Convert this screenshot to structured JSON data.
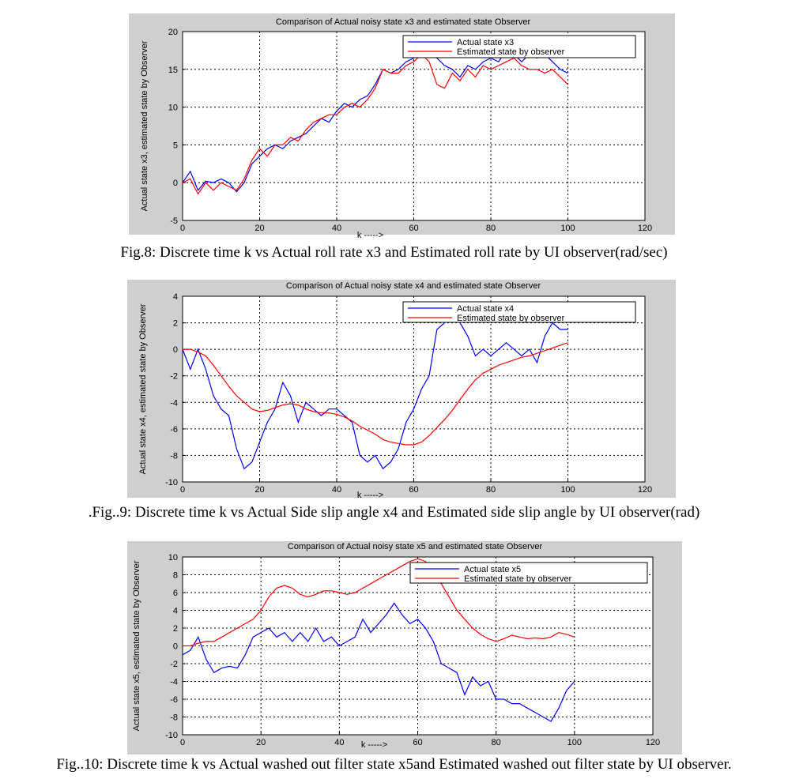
{
  "chart_data": [
    {
      "type": "line",
      "title": "Comparison of Actual noisy state x3 and estimated state  Observer",
      "xlabel": "k ----->",
      "ylabel": "Actual state x3, estimated state by Observer",
      "xlim": [
        0,
        120
      ],
      "ylim": [
        -5,
        20
      ],
      "xticks": [
        0,
        20,
        40,
        60,
        80,
        100,
        120
      ],
      "yticks": [
        -5,
        0,
        5,
        10,
        15,
        20
      ],
      "grid": true,
      "legend_position": "top-right",
      "caption": "Fig.8: Discrete time k vs Actual  roll  rate x3 and Estimated roll rate by UI observer(rad/sec)",
      "series": [
        {
          "name": "Actual state x3",
          "color": "#0000ff",
          "x": [
            0,
            2,
            4,
            6,
            8,
            10,
            12,
            14,
            16,
            18,
            20,
            22,
            24,
            26,
            28,
            30,
            32,
            34,
            36,
            38,
            40,
            42,
            44,
            46,
            48,
            50,
            52,
            54,
            56,
            58,
            60,
            62,
            64,
            66,
            68,
            70,
            72,
            74,
            76,
            78,
            80,
            82,
            84,
            86,
            88,
            90,
            92,
            94,
            96,
            98,
            100
          ],
          "y": [
            0,
            1.5,
            -1,
            0.2,
            0,
            0.5,
            0,
            -1.2,
            0,
            2.5,
            3.5,
            4.5,
            5,
            4.5,
            5.5,
            6,
            6.5,
            7.5,
            8.5,
            8,
            9.5,
            10.5,
            10,
            11,
            11.5,
            13,
            15,
            14.5,
            15,
            16,
            16.5,
            17.5,
            17,
            16.5,
            15.5,
            15,
            14,
            15.5,
            15,
            16,
            16.5,
            16,
            17.5,
            17,
            16,
            17,
            16.5,
            17,
            16,
            15,
            14.5
          ]
        },
        {
          "name": "Estimated state by observer",
          "color": "#ff0000",
          "x": [
            0,
            2,
            4,
            6,
            8,
            10,
            12,
            14,
            16,
            18,
            20,
            22,
            24,
            26,
            28,
            30,
            32,
            34,
            36,
            38,
            40,
            42,
            44,
            46,
            48,
            50,
            52,
            54,
            56,
            58,
            60,
            62,
            64,
            66,
            68,
            70,
            72,
            74,
            76,
            78,
            80,
            82,
            84,
            86,
            88,
            90,
            92,
            94,
            96,
            98,
            100
          ],
          "y": [
            0,
            0.5,
            -1.5,
            0,
            -1,
            0,
            -0.5,
            -1,
            0.5,
            3,
            4.5,
            3.5,
            5,
            5,
            6,
            5.5,
            7,
            8,
            8.5,
            9,
            9,
            10,
            10.5,
            10,
            11,
            12.5,
            15,
            14.5,
            14.5,
            15.5,
            16,
            17,
            16,
            13,
            12.5,
            14.5,
            13.5,
            15,
            14,
            15.5,
            15,
            15.5,
            16,
            16.5,
            15.5,
            15,
            15,
            14.5,
            15,
            14,
            13
          ]
        }
      ]
    },
    {
      "type": "line",
      "title": "Comparison of Actual noisy state x4 and estimated state  Observer",
      "xlabel": "k ----->",
      "ylabel": "Actual state x4, estimated state by Observer",
      "xlim": [
        0,
        120
      ],
      "ylim": [
        -10,
        4
      ],
      "xticks": [
        0,
        20,
        40,
        60,
        80,
        100,
        120
      ],
      "yticks": [
        -10,
        -8,
        -6,
        -4,
        -2,
        0,
        2,
        4
      ],
      "grid": true,
      "legend_position": "top-right",
      "caption": ".Fig..9: Discrete time k vs Actual Side slip angle x4 and Estimated side slip angle  by UI observer(rad)",
      "series": [
        {
          "name": "Actual state x4",
          "color": "#0000ff",
          "x": [
            0,
            2,
            4,
            6,
            8,
            10,
            12,
            14,
            16,
            18,
            20,
            22,
            24,
            26,
            28,
            30,
            32,
            34,
            36,
            38,
            40,
            42,
            44,
            46,
            48,
            50,
            52,
            54,
            56,
            58,
            60,
            62,
            64,
            66,
            68,
            70,
            72,
            74,
            76,
            78,
            80,
            82,
            84,
            86,
            88,
            90,
            92,
            94,
            96,
            98,
            100
          ],
          "y": [
            0,
            -1.5,
            0,
            -1.5,
            -3.5,
            -4.5,
            -5,
            -7.5,
            -9,
            -8.5,
            -7,
            -5.5,
            -4.5,
            -2.5,
            -3.5,
            -5.5,
            -4,
            -4.5,
            -5,
            -4.5,
            -4.5,
            -5,
            -5.5,
            -8,
            -8.5,
            -8,
            -9,
            -8.5,
            -7.5,
            -5.5,
            -4.5,
            -3,
            -2,
            1.5,
            2,
            3,
            2,
            1,
            -0.5,
            0,
            -0.5,
            0,
            0.5,
            0,
            -0.5,
            0,
            -1,
            1,
            2,
            1.5,
            1.5
          ]
        },
        {
          "name": "Estimated state by observer",
          "color": "#ff0000",
          "x": [
            0,
            2,
            4,
            6,
            8,
            10,
            12,
            14,
            16,
            18,
            20,
            22,
            24,
            26,
            28,
            30,
            32,
            34,
            36,
            38,
            40,
            42,
            44,
            46,
            48,
            50,
            52,
            54,
            56,
            58,
            60,
            62,
            64,
            66,
            68,
            70,
            72,
            74,
            76,
            78,
            80,
            82,
            84,
            86,
            88,
            90,
            92,
            94,
            96,
            98,
            100
          ],
          "y": [
            0,
            0,
            -0.2,
            -0.5,
            -1.2,
            -2,
            -2.8,
            -3.5,
            -4,
            -4.5,
            -4.7,
            -4.6,
            -4.4,
            -4.2,
            -4.1,
            -4.2,
            -4.5,
            -4.7,
            -4.8,
            -4.8,
            -4.9,
            -5.1,
            -5.4,
            -5.8,
            -6.1,
            -6.4,
            -6.8,
            -7.0,
            -7.1,
            -7.2,
            -7.2,
            -7.0,
            -6.5,
            -5.9,
            -5.3,
            -4.6,
            -3.8,
            -3.0,
            -2.3,
            -1.8,
            -1.5,
            -1.2,
            -1.0,
            -0.8,
            -0.6,
            -0.5,
            -0.3,
            -0.1,
            0.1,
            0.3,
            0.5
          ]
        }
      ]
    },
    {
      "type": "line",
      "title": "Comparison of Actual noisy state x5 and estimated state  Observer",
      "xlabel": "k ----->",
      "ylabel": "Actual state x5, estimated state by Observer",
      "xlim": [
        0,
        120
      ],
      "ylim": [
        -10,
        10
      ],
      "xticks": [
        0,
        20,
        40,
        60,
        80,
        100,
        120
      ],
      "yticks": [
        -10,
        -8,
        -6,
        -4,
        -2,
        0,
        2,
        4,
        6,
        8,
        10
      ],
      "grid": true,
      "legend_position": "top-right",
      "caption": "Fig..10: Discrete time k vs Actual washed out filter state x5and Estimated washed out filter state by UI observer.",
      "series": [
        {
          "name": "Actual state x5",
          "color": "#0000ff",
          "x": [
            0,
            2,
            4,
            6,
            8,
            10,
            12,
            14,
            16,
            18,
            20,
            22,
            24,
            26,
            28,
            30,
            32,
            34,
            36,
            38,
            40,
            42,
            44,
            46,
            48,
            50,
            52,
            54,
            56,
            58,
            60,
            62,
            64,
            66,
            68,
            70,
            72,
            74,
            76,
            78,
            80,
            82,
            84,
            86,
            88,
            90,
            92,
            94,
            96,
            98,
            100
          ],
          "y": [
            -1,
            -0.5,
            1,
            -1.5,
            -3,
            -2.5,
            -2.3,
            -2.5,
            -1,
            1,
            1.5,
            2,
            1,
            1.5,
            0.5,
            1.5,
            0.5,
            2,
            0.5,
            1,
            0,
            0.5,
            1,
            3,
            1.5,
            2.5,
            3.5,
            4.8,
            3.5,
            2.5,
            3,
            2,
            0.5,
            -2,
            -2.5,
            -3,
            -5.5,
            -3.5,
            -4.5,
            -4,
            -6,
            -6,
            -6.5,
            -6.5,
            -7,
            -7.5,
            -8,
            -8.5,
            -7,
            -5,
            -4
          ]
        },
        {
          "name": "Estimated state by observer",
          "color": "#ff0000",
          "x": [
            0,
            2,
            4,
            6,
            8,
            10,
            12,
            14,
            16,
            18,
            20,
            22,
            24,
            26,
            28,
            30,
            32,
            34,
            36,
            38,
            40,
            42,
            44,
            46,
            48,
            50,
            52,
            54,
            56,
            58,
            60,
            62,
            64,
            66,
            68,
            70,
            72,
            74,
            76,
            78,
            80,
            82,
            84,
            86,
            88,
            90,
            92,
            94,
            96,
            98,
            100
          ],
          "y": [
            0,
            0,
            0.3,
            0.5,
            0.5,
            1,
            1.5,
            2,
            2.5,
            3,
            4,
            5.5,
            6.5,
            6.8,
            6.5,
            5.8,
            5.5,
            5.8,
            6.2,
            6.2,
            6,
            5.8,
            6,
            6.5,
            7,
            7.5,
            8,
            8.5,
            9,
            9.5,
            9.8,
            9.5,
            8.5,
            7,
            5.5,
            4,
            3,
            2,
            1.3,
            0.8,
            0.5,
            0.8,
            1.2,
            1,
            0.8,
            0.9,
            0.8,
            1,
            1.5,
            1.3,
            1
          ]
        }
      ]
    }
  ]
}
